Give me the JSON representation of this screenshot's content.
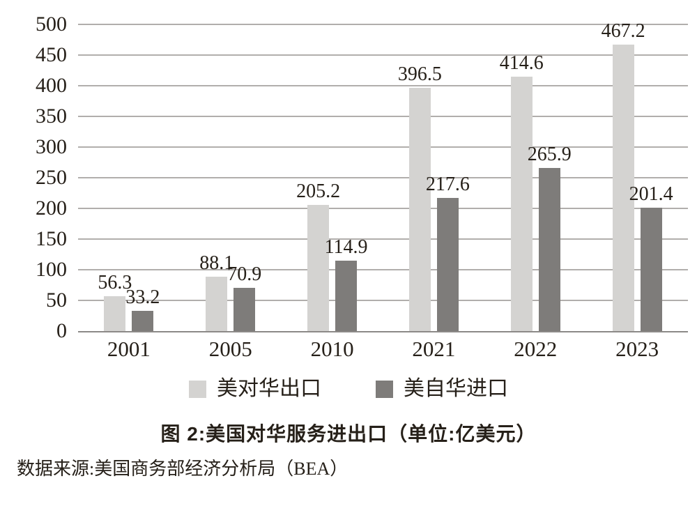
{
  "figure": {
    "caption": "图 2:美国对华服务进出口（单位:亿美元）",
    "source": "数据来源:美国商务部经济分析局（BEA）"
  },
  "colors": {
    "export_bar": "#d4d3d1",
    "import_bar": "#7e7c7a",
    "gridline": "#b1aeac",
    "axis_line": "#8c8987",
    "text": "#262019"
  },
  "chart_data": {
    "type": "bar",
    "title": "图 2:美国对华服务进出口（单位:亿美元）",
    "categories": [
      "2001",
      "2005",
      "2010",
      "2021",
      "2022",
      "2023"
    ],
    "series": [
      {
        "name": "美对华出口",
        "color": "#d4d3d1",
        "values": [
          56.3,
          88.1,
          205.2,
          396.5,
          414.6,
          467.2
        ]
      },
      {
        "name": "美自华进口",
        "color": "#7e7c7a",
        "values": [
          33.2,
          70.9,
          114.9,
          217.6,
          265.9,
          201.4
        ]
      }
    ],
    "xlabel": "",
    "ylabel": "",
    "ylim": [
      0,
      500
    ],
    "ytick_step": 50,
    "grid": true,
    "value_labels": true,
    "legend_position": "bottom"
  }
}
